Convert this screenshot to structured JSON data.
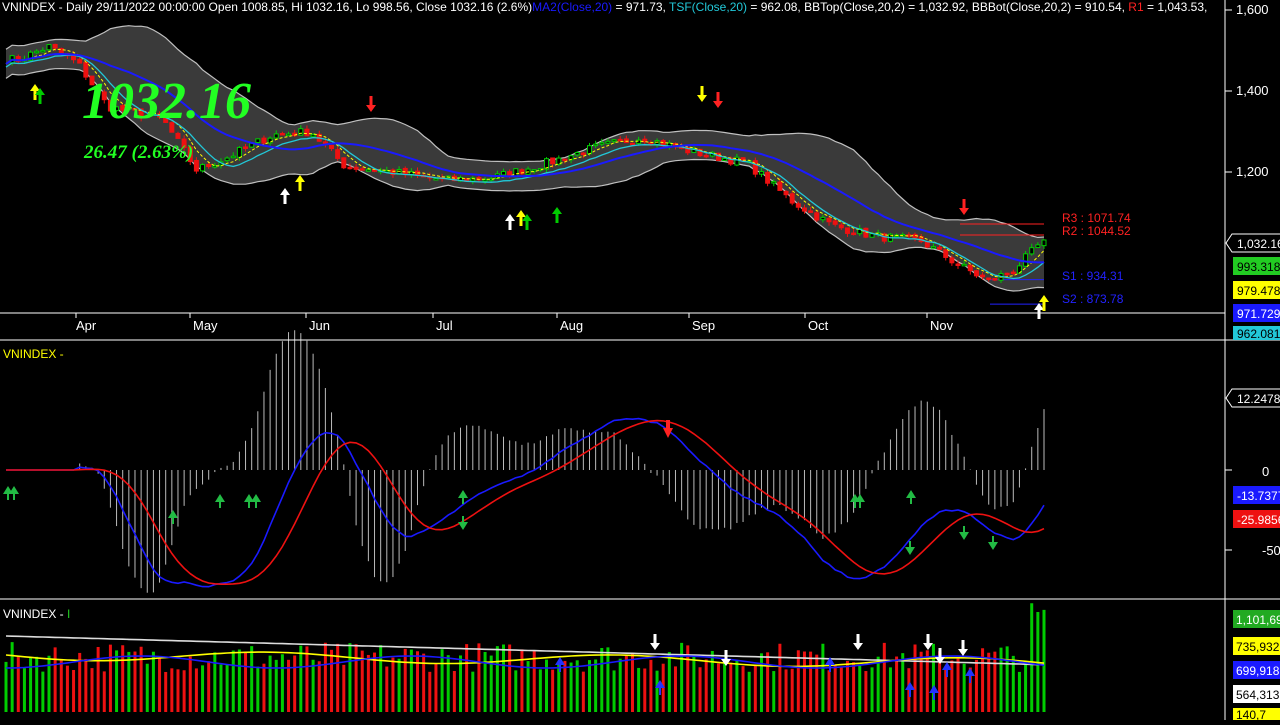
{
  "colors": {
    "background": "#000000",
    "grid": "#ffffff",
    "text": "#ffffff",
    "up": "#00cc00",
    "down": "#ee1111",
    "ma": "#1a1aff",
    "tsf": "#22c8d8",
    "band": "#c0c0c0",
    "band_fill": "#3a3a3a",
    "big_quote": "#22ff22",
    "yellow": "#ffff00",
    "red": "#ff2222",
    "blue": "#2222ff"
  },
  "header": {
    "title": "VNINDEX - Daily 29/11/2022 00:00:00 Open 1008.85, Hi 1032.16, Lo 998.56, Close 1032.16 (2.6%)",
    "ma_label": "MA2(Close,20)",
    "ma_value": " = 971.73, ",
    "tsf_label": "TSF(Close,20)",
    "tsf_value": " = 962.08, BBTop(Close,20,2) = 1,032.92, BBBot(Close,20,2) = 910.54, ",
    "r1_label": "R1",
    "r1_value": " = 1,043.53, "
  },
  "quote": {
    "last": "1032.16",
    "change": "26.47 (2.63%)"
  },
  "pivots": {
    "r3": "R3 : 1071.74",
    "r2": "R2 : 1044.52",
    "s1": "S1 : 934.31",
    "s2": "S2 : 873.78"
  },
  "months": [
    "Apr",
    "May",
    "Jun",
    "Jul",
    "Aug",
    "Sep",
    "Oct",
    "Nov"
  ],
  "price_axis": {
    "ticks": [
      "1,600",
      "1,400",
      "1,200"
    ],
    "badges": [
      "1,032.16",
      "993.318",
      "979.478",
      "971.729",
      "962.081"
    ]
  },
  "macd_panel": {
    "title": "VNINDEX -",
    "ticks": [
      "0",
      "-50"
    ],
    "badges": [
      "12.2478",
      "-13.7377",
      "-25.9856"
    ]
  },
  "volume_panel": {
    "title": "VNINDEX - ",
    "title_suffix": "I",
    "badges": [
      "1,101,69",
      "735,932,",
      "699,918",
      "564,313,",
      "140,7"
    ]
  },
  "chart_data": {
    "type": "candlestick",
    "x_label_months": [
      "Apr",
      "May",
      "Jun",
      "Jul",
      "Aug",
      "Sep",
      "Oct",
      "Nov"
    ],
    "close_anchors": [
      {
        "date": "2022-04-01",
        "close": 1478
      },
      {
        "date": "2022-04-08",
        "close": 1510
      },
      {
        "date": "2022-04-15",
        "close": 1468
      },
      {
        "date": "2022-04-22",
        "close": 1362
      },
      {
        "date": "2022-05-05",
        "close": 1330
      },
      {
        "date": "2022-05-13",
        "close": 1205
      },
      {
        "date": "2022-05-20",
        "close": 1235
      },
      {
        "date": "2022-05-31",
        "close": 1292
      },
      {
        "date": "2022-06-09",
        "close": 1300
      },
      {
        "date": "2022-06-17",
        "close": 1215
      },
      {
        "date": "2022-06-30",
        "close": 1197
      },
      {
        "date": "2022-07-11",
        "close": 1180
      },
      {
        "date": "2022-07-22",
        "close": 1186
      },
      {
        "date": "2022-08-03",
        "close": 1220
      },
      {
        "date": "2022-08-15",
        "close": 1260
      },
      {
        "date": "2022-08-26",
        "close": 1286
      },
      {
        "date": "2022-09-07",
        "close": 1250
      },
      {
        "date": "2022-09-20",
        "close": 1222
      },
      {
        "date": "2022-09-30",
        "close": 1132
      },
      {
        "date": "2022-10-10",
        "close": 1068
      },
      {
        "date": "2022-10-20",
        "close": 1042
      },
      {
        "date": "2022-10-31",
        "close": 1030
      },
      {
        "date": "2022-11-09",
        "close": 970
      },
      {
        "date": "2022-11-16",
        "close": 930
      },
      {
        "date": "2022-11-22",
        "close": 960
      },
      {
        "date": "2022-11-29",
        "close": 1032.16
      }
    ],
    "last_bar": {
      "date": "2022-11-29",
      "open": 1008.85,
      "high": 1032.16,
      "low": 998.56,
      "close": 1032.16,
      "change_pct": 2.6
    },
    "indicators": {
      "MA2_close_20": 971.73,
      "TSF_close_20": 962.08,
      "BBTop": 1032.92,
      "BBBot": 910.54,
      "R1": 1043.53,
      "R2": 1044.52,
      "R3": 1071.74,
      "S1": 934.31,
      "S2": 873.78
    },
    "y_ticks": [
      1600,
      1400,
      1200
    ],
    "ylim": [
      850,
      1640
    ],
    "macd": {
      "histogram_last": 12.2478,
      "line1_last": -13.7377,
      "line2_last": -25.9856,
      "y_ticks": [
        0,
        -50
      ]
    },
    "volume": {
      "last": "1,101,69",
      "levels": [
        "735,932,",
        "699,918",
        "564,313,",
        "140,7"
      ]
    }
  }
}
